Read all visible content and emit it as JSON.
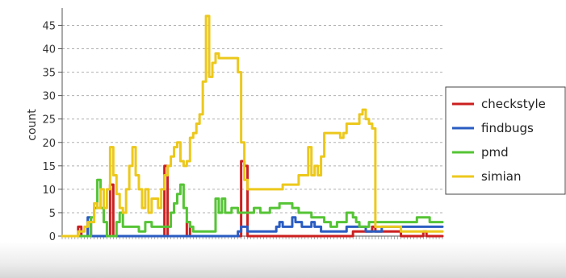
{
  "chart_data": {
    "type": "line",
    "title": "",
    "xlabel": "",
    "ylabel": "count",
    "ylim": [
      0,
      48
    ],
    "yticks": [
      0,
      5,
      10,
      15,
      20,
      25,
      30,
      35,
      40,
      45
    ],
    "grid": true,
    "legend": "right",
    "x_count": 120,
    "series": [
      {
        "name": "checkstyle",
        "color": "#cc1f1f",
        "points": [
          [
            0,
            0
          ],
          [
            4,
            0
          ],
          [
            5,
            2
          ],
          [
            6,
            0
          ],
          [
            8,
            3
          ],
          [
            9,
            0
          ],
          [
            14,
            0
          ],
          [
            15,
            11
          ],
          [
            16,
            0
          ],
          [
            31,
            0
          ],
          [
            32,
            15
          ],
          [
            33,
            0
          ],
          [
            38,
            0
          ],
          [
            39,
            3
          ],
          [
            40,
            0
          ],
          [
            55,
            0
          ],
          [
            56,
            16
          ],
          [
            57,
            15
          ],
          [
            58,
            0
          ],
          [
            90,
            0
          ],
          [
            91,
            1
          ],
          [
            96,
            1
          ],
          [
            97,
            2
          ],
          [
            98,
            1
          ],
          [
            105,
            1
          ],
          [
            106,
            0
          ],
          [
            112,
            0
          ],
          [
            113,
            1
          ],
          [
            114,
            0
          ],
          [
            119,
            0
          ]
        ]
      },
      {
        "name": "findbugs",
        "color": "#2a5cc2",
        "points": [
          [
            0,
            0
          ],
          [
            7,
            0
          ],
          [
            8,
            4
          ],
          [
            9,
            0
          ],
          [
            54,
            0
          ],
          [
            55,
            1
          ],
          [
            56,
            2
          ],
          [
            57,
            2
          ],
          [
            58,
            1
          ],
          [
            66,
            1
          ],
          [
            67,
            2
          ],
          [
            68,
            3
          ],
          [
            69,
            2
          ],
          [
            70,
            2
          ],
          [
            72,
            4
          ],
          [
            73,
            3
          ],
          [
            74,
            3
          ],
          [
            75,
            2
          ],
          [
            77,
            2
          ],
          [
            78,
            3
          ],
          [
            79,
            2
          ],
          [
            80,
            2
          ],
          [
            81,
            1
          ],
          [
            88,
            1
          ],
          [
            89,
            2
          ],
          [
            90,
            2
          ],
          [
            94,
            2
          ],
          [
            95,
            1
          ],
          [
            99,
            1
          ],
          [
            100,
            2
          ],
          [
            119,
            2
          ]
        ]
      },
      {
        "name": "pmd",
        "color": "#55c435",
        "points": [
          [
            0,
            0
          ],
          [
            8,
            0
          ],
          [
            9,
            4
          ],
          [
            10,
            6
          ],
          [
            11,
            12
          ],
          [
            12,
            6
          ],
          [
            13,
            3
          ],
          [
            14,
            0
          ],
          [
            16,
            0
          ],
          [
            17,
            3
          ],
          [
            18,
            5
          ],
          [
            19,
            2
          ],
          [
            22,
            2
          ],
          [
            24,
            1
          ],
          [
            26,
            3
          ],
          [
            28,
            2
          ],
          [
            31,
            2
          ],
          [
            34,
            5
          ],
          [
            35,
            7
          ],
          [
            36,
            9
          ],
          [
            37,
            11
          ],
          [
            38,
            6
          ],
          [
            39,
            3
          ],
          [
            40,
            2
          ],
          [
            41,
            1
          ],
          [
            45,
            1
          ],
          [
            47,
            1
          ],
          [
            48,
            8
          ],
          [
            49,
            5
          ],
          [
            50,
            8
          ],
          [
            51,
            5
          ],
          [
            52,
            5
          ],
          [
            53,
            6
          ],
          [
            55,
            5
          ],
          [
            57,
            5
          ],
          [
            60,
            6
          ],
          [
            62,
            5
          ],
          [
            65,
            6
          ],
          [
            67,
            6
          ],
          [
            68,
            7
          ],
          [
            70,
            7
          ],
          [
            72,
            6
          ],
          [
            73,
            6
          ],
          [
            74,
            5
          ],
          [
            76,
            5
          ],
          [
            78,
            4
          ],
          [
            80,
            4
          ],
          [
            82,
            3
          ],
          [
            84,
            2
          ],
          [
            86,
            3
          ],
          [
            88,
            3
          ],
          [
            89,
            5
          ],
          [
            90,
            5
          ],
          [
            91,
            4
          ],
          [
            92,
            3
          ],
          [
            93,
            2
          ],
          [
            95,
            2
          ],
          [
            96,
            3
          ],
          [
            100,
            3
          ],
          [
            102,
            3
          ],
          [
            104,
            3
          ],
          [
            106,
            3
          ],
          [
            110,
            3
          ],
          [
            111,
            4
          ],
          [
            114,
            4
          ],
          [
            115,
            3
          ],
          [
            119,
            3
          ]
        ]
      },
      {
        "name": "simian",
        "color": "#ecc81c",
        "points": [
          [
            0,
            0
          ],
          [
            4,
            0
          ],
          [
            5,
            1
          ],
          [
            6,
            1
          ],
          [
            7,
            2
          ],
          [
            8,
            3
          ],
          [
            9,
            3
          ],
          [
            10,
            7
          ],
          [
            11,
            6
          ],
          [
            12,
            10
          ],
          [
            13,
            6
          ],
          [
            14,
            10
          ],
          [
            15,
            19
          ],
          [
            16,
            13
          ],
          [
            17,
            9
          ],
          [
            18,
            6
          ],
          [
            19,
            5
          ],
          [
            20,
            10
          ],
          [
            21,
            15
          ],
          [
            22,
            19
          ],
          [
            23,
            13
          ],
          [
            24,
            10
          ],
          [
            25,
            6
          ],
          [
            26,
            10
          ],
          [
            27,
            5
          ],
          [
            28,
            8
          ],
          [
            29,
            8
          ],
          [
            30,
            6
          ],
          [
            31,
            10
          ],
          [
            32,
            13
          ],
          [
            33,
            15
          ],
          [
            34,
            17
          ],
          [
            35,
            19
          ],
          [
            36,
            20
          ],
          [
            37,
            16
          ],
          [
            38,
            15
          ],
          [
            39,
            16
          ],
          [
            40,
            21
          ],
          [
            41,
            22
          ],
          [
            42,
            24
          ],
          [
            43,
            26
          ],
          [
            44,
            33
          ],
          [
            45,
            47
          ],
          [
            46,
            34
          ],
          [
            47,
            37
          ],
          [
            48,
            39
          ],
          [
            49,
            38
          ],
          [
            54,
            38
          ],
          [
            55,
            35
          ],
          [
            56,
            20
          ],
          [
            57,
            12
          ],
          [
            58,
            10
          ],
          [
            59,
            10
          ],
          [
            68,
            10
          ],
          [
            69,
            11
          ],
          [
            73,
            11
          ],
          [
            74,
            13
          ],
          [
            76,
            13
          ],
          [
            77,
            19
          ],
          [
            78,
            13
          ],
          [
            79,
            15
          ],
          [
            80,
            13
          ],
          [
            81,
            17
          ],
          [
            82,
            22
          ],
          [
            86,
            22
          ],
          [
            87,
            21
          ],
          [
            88,
            22
          ],
          [
            89,
            24
          ],
          [
            92,
            24
          ],
          [
            93,
            26
          ],
          [
            94,
            27
          ],
          [
            95,
            25
          ],
          [
            96,
            24
          ],
          [
            97,
            23
          ],
          [
            98,
            2
          ],
          [
            105,
            2
          ],
          [
            106,
            1
          ],
          [
            119,
            1
          ]
        ]
      }
    ]
  }
}
